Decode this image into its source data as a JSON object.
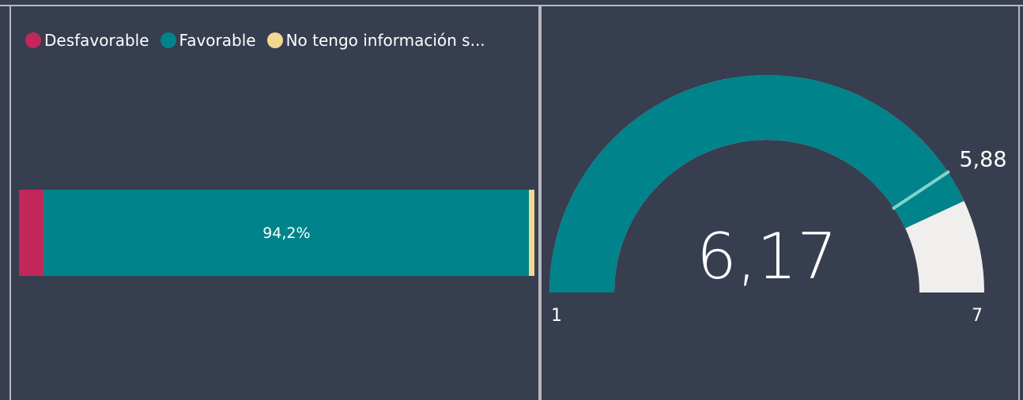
{
  "colors": {
    "background": "#373e4f",
    "desfavorable": "#c2275b",
    "favorable": "#00838a",
    "no_info": "#f3d891",
    "gauge_track": "#f1efee",
    "target_line": "#7fd4c8"
  },
  "legend": {
    "items": [
      {
        "label": "Desfavorable",
        "color": "#c2275b"
      },
      {
        "label": "Favorable",
        "color": "#00838a"
      },
      {
        "label": "No tengo información s...",
        "color": "#f3d891"
      }
    ]
  },
  "chart_data": [
    {
      "type": "bar",
      "orientation": "horizontal-100%-stacked",
      "series": [
        {
          "name": "Desfavorable",
          "value": 4.8
        },
        {
          "name": "Favorable",
          "value": 94.2
        },
        {
          "name": "No tengo información s...",
          "value": 1.0
        }
      ],
      "data_labels": {
        "Favorable": "94,2%"
      }
    },
    {
      "type": "gauge",
      "value": 6.17,
      "value_label": "6,17",
      "min": 1,
      "min_label": "1",
      "max": 7,
      "max_label": "7",
      "target": 5.88,
      "target_label": "5,88"
    }
  ]
}
